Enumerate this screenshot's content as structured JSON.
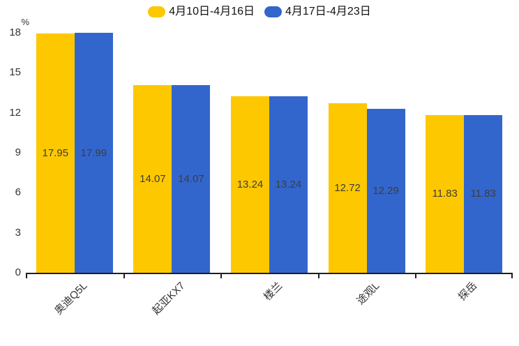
{
  "legend": {
    "items": [
      {
        "label": "4月10日-4月16日",
        "color": "#fdc800"
      },
      {
        "label": "4月17日-4月23日",
        "color": "#3366cc"
      }
    ]
  },
  "chart_data": {
    "type": "bar",
    "title": "",
    "unit_label": "%",
    "xlabel": "",
    "ylabel": "%",
    "categories": [
      "奥迪Q5L",
      "起亚KX7",
      "楼兰",
      "途观L",
      "探岳"
    ],
    "series": [
      {
        "name": "4月10日-4月16日",
        "color": "#fdc800",
        "values": [
          17.95,
          14.07,
          13.24,
          12.72,
          11.83
        ]
      },
      {
        "name": "4月17日-4月23日",
        "color": "#3366cc",
        "values": [
          17.99,
          14.07,
          13.24,
          12.29,
          11.83
        ]
      }
    ],
    "ylim": [
      0,
      18
    ],
    "yticks": [
      0,
      3,
      6,
      9,
      12,
      15,
      18
    ],
    "grid": false,
    "legend_position": "top",
    "value_labels": "inside-center"
  }
}
